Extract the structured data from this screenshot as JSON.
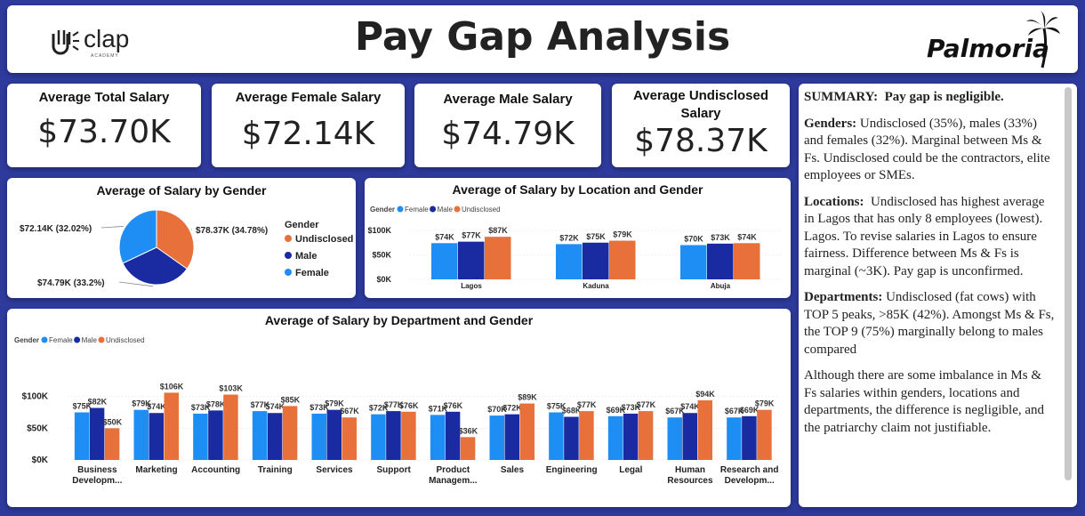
{
  "header": {
    "title": "Pay Gap Analysis",
    "left_logo_text": "clap",
    "left_logo_sub": "ACADEMY",
    "right_logo_text": "Palmoria"
  },
  "kpis": [
    {
      "label": "Average Total Salary",
      "value": "$73.70K"
    },
    {
      "label": "Average Female Salary",
      "value": "$72.14K"
    },
    {
      "label": "Average Male Salary",
      "value": "$74.79K"
    },
    {
      "label": "Average Undisclosed Salary",
      "value": "$78.37K"
    }
  ],
  "colors": {
    "female": "#1e8ef5",
    "male": "#1a2aa0",
    "undisclosed": "#e8703a"
  },
  "chart_data": [
    {
      "type": "pie",
      "title": "Average of Salary by Gender",
      "legend_title": "Gender",
      "legend_position": "right",
      "slices": [
        {
          "name": "Undisclosed",
          "value": 78.37,
          "percent": 34.78,
          "label": "$78.37K (34.78%)"
        },
        {
          "name": "Male",
          "value": 74.79,
          "percent": 33.2,
          "label": "$74.79K (33.2%)"
        },
        {
          "name": "Female",
          "value": 72.14,
          "percent": 32.02,
          "label": "$72.14K (32.02%)"
        }
      ]
    },
    {
      "type": "bar",
      "title": "Average of Salary by Location and Gender",
      "legend_title": "Gender",
      "legend_position": "top-left",
      "categories": [
        "Lagos",
        "Kaduna",
        "Abuja"
      ],
      "series": [
        {
          "name": "Female",
          "values": [
            74,
            72,
            70
          ]
        },
        {
          "name": "Male",
          "values": [
            77,
            75,
            73
          ]
        },
        {
          "name": "Undisclosed",
          "values": [
            87,
            79,
            74
          ]
        }
      ],
      "y_ticks": [
        "$0K",
        "$50K",
        "$100K"
      ],
      "ylim": [
        0,
        100
      ]
    },
    {
      "type": "bar",
      "title": "Average of Salary by Department and Gender",
      "legend_title": "Gender",
      "legend_position": "top-left",
      "categories": [
        "Business Developm...",
        "Marketing",
        "Accounting",
        "Training",
        "Services",
        "Support",
        "Product Managem...",
        "Sales",
        "Engineering",
        "Legal",
        "Human Resources",
        "Research and Developm..."
      ],
      "series": [
        {
          "name": "Female",
          "values": [
            75,
            79,
            73,
            77,
            73,
            72,
            71,
            70,
            75,
            69,
            67,
            67
          ]
        },
        {
          "name": "Male",
          "values": [
            82,
            74,
            78,
            74,
            79,
            77,
            76,
            72,
            68,
            73,
            74,
            69
          ]
        },
        {
          "name": "Undisclosed",
          "values": [
            50,
            106,
            103,
            85,
            67,
            76,
            36,
            89,
            77,
            77,
            94,
            79
          ]
        }
      ],
      "y_ticks": [
        "$0K",
        "$50K",
        "$100K"
      ],
      "ylim": [
        0,
        115
      ]
    }
  ],
  "summary": {
    "headline_label": "SUMMARY:",
    "headline_text": "Pay gap is negligible.",
    "genders_label": "Genders:",
    "genders_text": "Undisclosed (35%), males (33%) and females (32%).  Marginal between Ms & Fs.  Undisclosed could be the contractors, elite employees or SMEs.",
    "locations_label": "Locations:",
    "locations_text": "Undisclosed has highest average in Lagos that has only 8 employees (lowest).  Lagos.  To revise salaries in Lagos to ensure fairness.  Difference between Ms & Fs is marginal (~3K). Pay gap is unconfirmed.",
    "departments_label": "Departments:",
    "departments_text": "Undisclosed (fat cows) with TOP 5 peaks, >85K (42%).  Amongst Ms & Fs, the TOP 9 (75%) marginally belong to males compared",
    "conclusion_text": "Although there are some imbalance in Ms & Fs salaries within genders, locations and departments, the difference is negligible, and the patriarchy claim not justifiable."
  }
}
